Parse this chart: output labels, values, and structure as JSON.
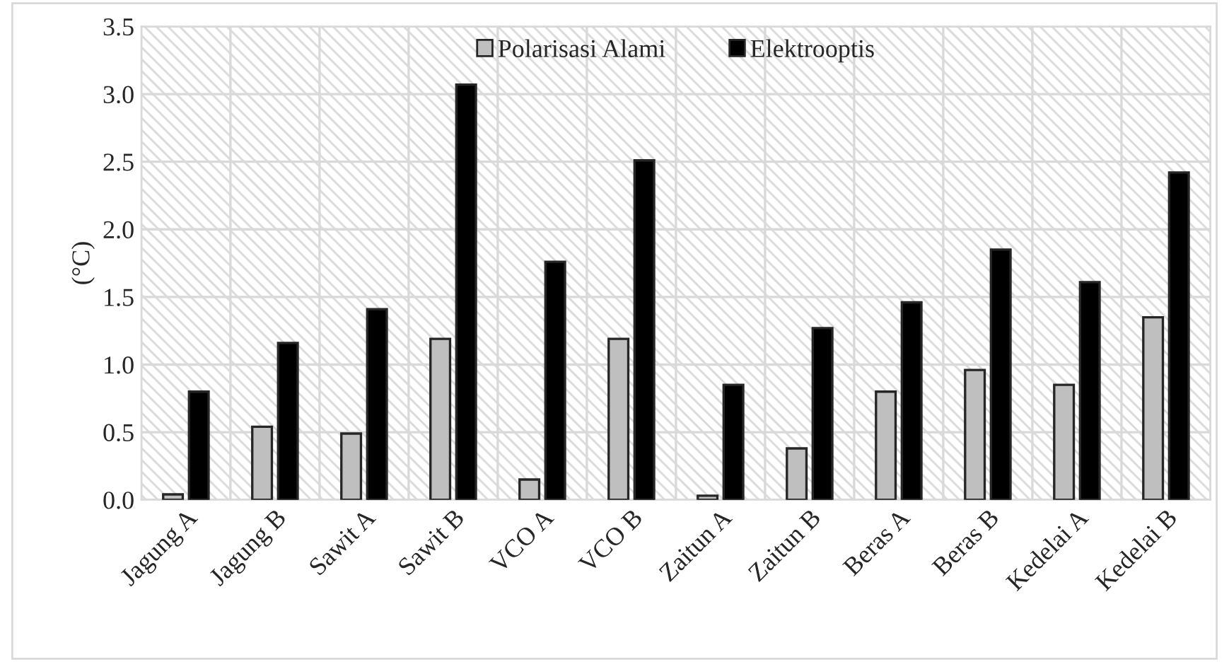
{
  "chart_data": {
    "type": "bar",
    "ylabel": "(°C)",
    "categories": [
      "Jagung A",
      "Jagung B",
      "Sawit A",
      "Sawit B",
      "VCO A",
      "VCO B",
      "Zaitun A",
      "Zaitun B",
      "Beras A",
      "Beras B",
      "Kedelai A",
      "Kedelai B"
    ],
    "series": [
      {
        "name": "Polarisasi Alami",
        "color": "#bfbfbf",
        "values": [
          0.04,
          0.54,
          0.49,
          1.19,
          0.15,
          1.19,
          0.03,
          0.38,
          0.8,
          0.96,
          0.85,
          1.35
        ]
      },
      {
        "name": "Elektrooptis",
        "color": "#000000",
        "values": [
          0.8,
          1.16,
          1.41,
          3.07,
          1.76,
          2.51,
          0.85,
          1.27,
          1.46,
          1.85,
          1.61,
          2.42
        ]
      }
    ],
    "ylim": [
      0,
      3.5
    ],
    "yticks": [
      {
        "value": 0,
        "label": "0.0"
      },
      {
        "value": 0.5,
        "label": "0.5"
      },
      {
        "value": 1,
        "label": "1.0"
      },
      {
        "value": 1.5,
        "label": "1.5"
      },
      {
        "value": 2,
        "label": "2.0"
      },
      {
        "value": 2.5,
        "label": "2.5"
      },
      {
        "value": 3,
        "label": "3.0"
      },
      {
        "value": 3.5,
        "label": "3.5"
      }
    ],
    "grid": true,
    "legend": "top"
  }
}
